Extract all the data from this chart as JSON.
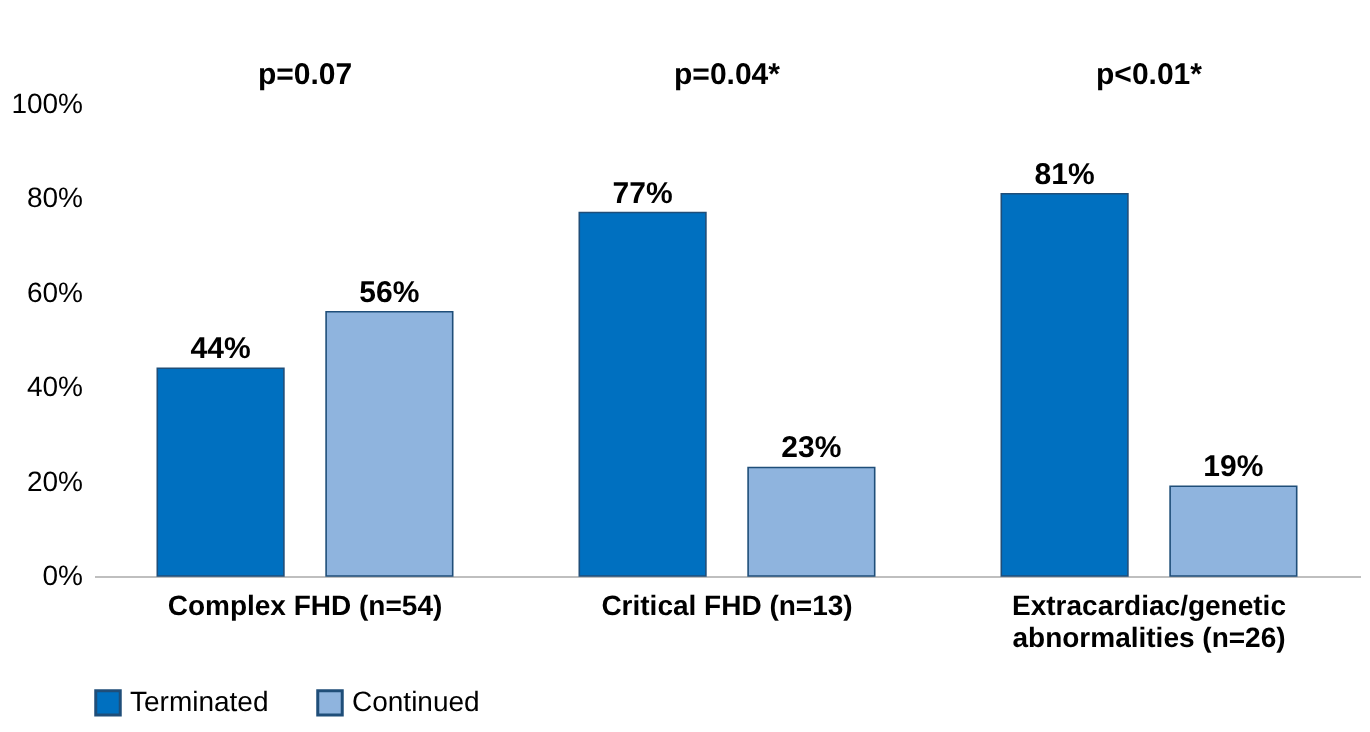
{
  "chart_data": {
    "type": "bar",
    "categories": [
      "Complex FHD (n=54)",
      "Critical FHD (n=13)",
      "Extracardiac/genetic abnormalities (n=26)"
    ],
    "series": [
      {
        "name": "Terminated",
        "color": "#0070c0",
        "values": [
          44,
          77,
          81
        ],
        "value_labels": [
          "44%",
          "77%",
          "81%"
        ]
      },
      {
        "name": "Continued",
        "color": "#8fb4de",
        "values": [
          56,
          23,
          19
        ],
        "value_labels": [
          "56%",
          "23%",
          "19%"
        ]
      }
    ],
    "ylim": [
      0,
      100
    ],
    "yticks": [
      {
        "value": 0,
        "label": "0%"
      },
      {
        "value": 20,
        "label": "20%"
      },
      {
        "value": 40,
        "label": "40%"
      },
      {
        "value": 60,
        "label": "60%"
      },
      {
        "value": 80,
        "label": "80%"
      },
      {
        "value": 100,
        "label": "100%"
      }
    ],
    "annotations": [
      "p=0.07",
      "p=0.04*",
      "p<0.01*"
    ],
    "grid": false,
    "legend": "bottom"
  }
}
